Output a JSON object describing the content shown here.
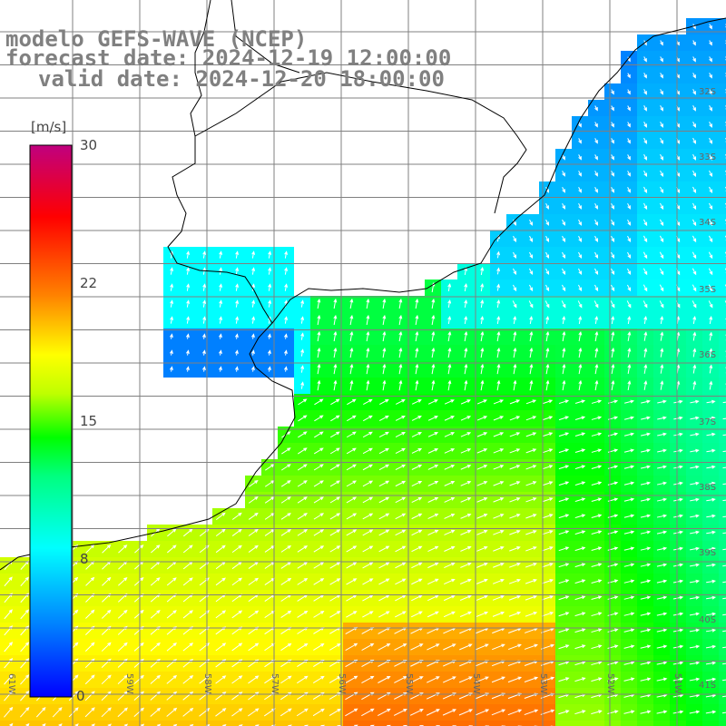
{
  "header": {
    "model": "modelo GEFS-WAVE (NCEP)",
    "forecast": "forecast date: 2024-12-19 12:00:00",
    "valid": "valid date: 2024-12-20 18:00:00"
  },
  "colorbar": {
    "unit": "[m/s]",
    "ticks": [
      "30",
      "22",
      "15",
      "8",
      "0"
    ],
    "min": 0,
    "max": 30
  },
  "axes": {
    "lon_labels": [
      "61W",
      "59W",
      "58W",
      "57W",
      "56W",
      "55W",
      "54W",
      "53W",
      "52W",
      "51W"
    ],
    "lat_labels": [
      "32S",
      "33S",
      "34S",
      "35S",
      "36S",
      "37S",
      "38S",
      "39S",
      "40S",
      "41S"
    ]
  },
  "colors": {
    "land": "#ffffff",
    "coast": "#000000",
    "grid": "#808080",
    "arrow": "#ffffff"
  }
}
